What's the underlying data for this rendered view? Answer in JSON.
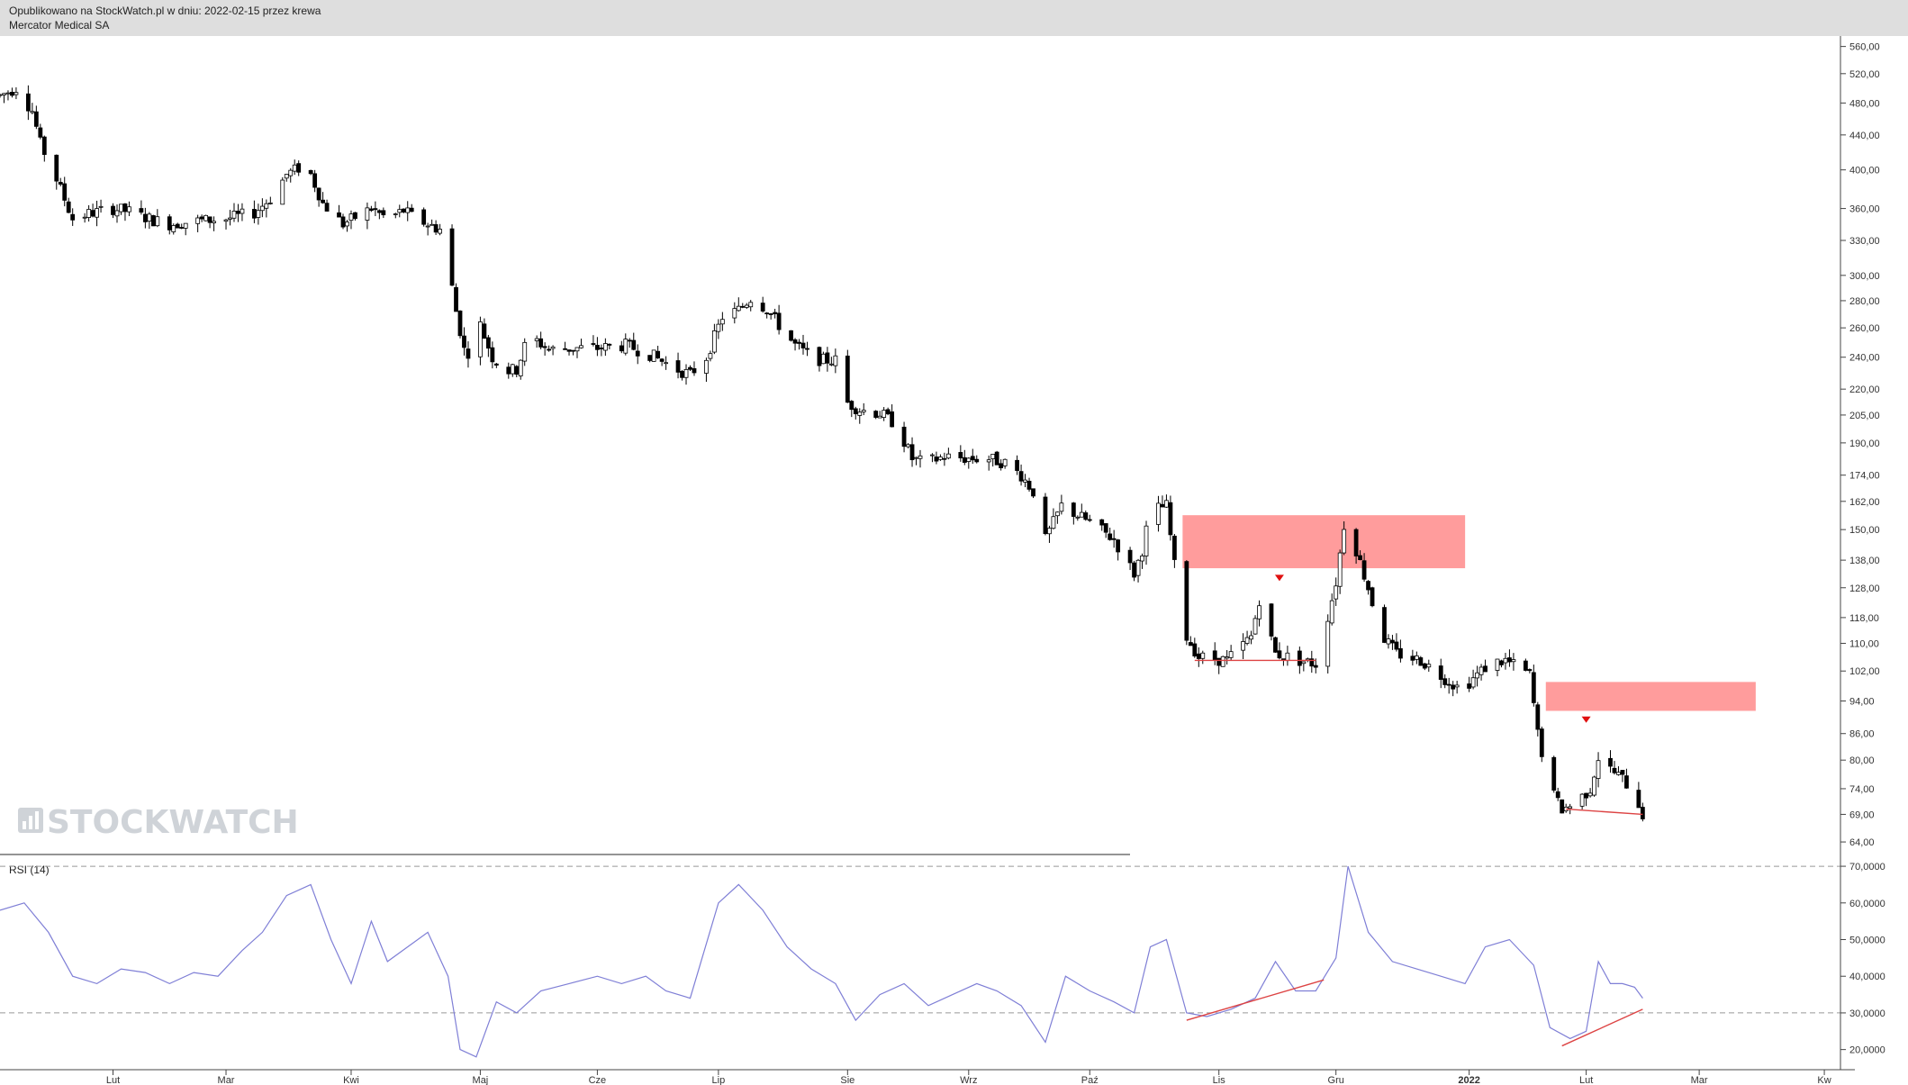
{
  "header": {
    "published": "Opublikowano na StockWatch.pl w dniu: 2022-02-15 przez krewa",
    "instrument": "Mercator Medical SA"
  },
  "watermark": "STOCKWATCH",
  "chart_data": [
    {
      "type": "candlestick",
      "title": "Mercator Medical SA",
      "y_scale": "log",
      "ylim": [
        62,
        565
      ],
      "y_ticks": [
        "560,00",
        "520,00",
        "480,00",
        "440,00",
        "400,00",
        "360,00",
        "330,00",
        "300,00",
        "280,00",
        "260,00",
        "240,00",
        "220,00",
        "205,00",
        "190,00",
        "174,00",
        "162,00",
        "150,00",
        "138,00",
        "128,00",
        "118,00",
        "110,00",
        "102,00",
        "94,00",
        "86,00",
        "80,00",
        "74,00",
        "69,00",
        "64,00"
      ],
      "x_range": [
        "2021-01-04",
        "2022-04-05"
      ],
      "x_ticks": [
        {
          "label": "Lut",
          "date": "2021-02-01"
        },
        {
          "label": "Mar",
          "date": "2021-03-01"
        },
        {
          "label": "Kwi",
          "date": "2021-04-01"
        },
        {
          "label": "Maj",
          "date": "2021-05-03"
        },
        {
          "label": "Cze",
          "date": "2021-06-01"
        },
        {
          "label": "Lip",
          "date": "2021-07-01"
        },
        {
          "label": "Sie",
          "date": "2021-08-02"
        },
        {
          "label": "Wrz",
          "date": "2021-09-01"
        },
        {
          "label": "Paź",
          "date": "2021-10-01"
        },
        {
          "label": "Lis",
          "date": "2021-11-02"
        },
        {
          "label": "Gru",
          "date": "2021-12-01"
        },
        {
          "label": "2022",
          "date": "2022-01-03",
          "bold": true
        },
        {
          "label": "Lut",
          "date": "2022-02-01"
        },
        {
          "label": "Mar",
          "date": "2022-03-01"
        },
        {
          "label": "Kw",
          "date": "2022-04-01"
        }
      ],
      "price_path": [
        [
          "2021-01-04",
          490
        ],
        [
          "2021-01-08",
          500
        ],
        [
          "2021-01-12",
          470
        ],
        [
          "2021-01-14",
          430
        ],
        [
          "2021-01-18",
          390
        ],
        [
          "2021-01-22",
          350
        ],
        [
          "2021-01-26",
          355
        ],
        [
          "2021-02-01",
          360
        ],
        [
          "2021-02-05",
          357
        ],
        [
          "2021-02-10",
          350
        ],
        [
          "2021-02-15",
          345
        ],
        [
          "2021-02-22",
          348
        ],
        [
          "2021-03-01",
          350
        ],
        [
          "2021-03-08",
          356
        ],
        [
          "2021-03-12",
          370
        ],
        [
          "2021-03-16",
          395
        ],
        [
          "2021-03-19",
          402
        ],
        [
          "2021-03-22",
          395
        ],
        [
          "2021-03-25",
          365
        ],
        [
          "2021-03-30",
          345
        ],
        [
          "2021-04-06",
          360
        ],
        [
          "2021-04-10",
          350
        ],
        [
          "2021-04-14",
          358
        ],
        [
          "2021-04-17",
          350
        ],
        [
          "2021-04-20",
          345
        ],
        [
          "2021-04-23",
          340
        ],
        [
          "2021-04-25",
          310
        ],
        [
          "2021-04-27",
          272
        ],
        [
          "2021-04-29",
          245
        ],
        [
          "2021-05-01",
          242
        ],
        [
          "2021-05-03",
          262
        ],
        [
          "2021-05-06",
          240
        ],
        [
          "2021-05-09",
          231
        ],
        [
          "2021-05-12",
          232
        ],
        [
          "2021-05-15",
          255
        ],
        [
          "2021-05-20",
          245
        ],
        [
          "2021-05-27",
          246
        ],
        [
          "2021-06-01",
          246
        ],
        [
          "2021-06-08",
          248
        ],
        [
          "2021-06-14",
          242
        ],
        [
          "2021-06-20",
          233
        ],
        [
          "2021-06-24",
          229
        ],
        [
          "2021-06-28",
          240
        ],
        [
          "2021-07-02",
          268
        ],
        [
          "2021-07-06",
          273
        ],
        [
          "2021-07-09",
          282
        ],
        [
          "2021-07-13",
          274
        ],
        [
          "2021-07-16",
          262
        ],
        [
          "2021-07-20",
          248
        ],
        [
          "2021-07-24",
          240
        ],
        [
          "2021-07-27",
          238
        ],
        [
          "2021-07-30",
          238
        ],
        [
          "2021-08-02",
          212
        ],
        [
          "2021-08-05",
          208
        ],
        [
          "2021-08-10",
          206
        ],
        [
          "2021-08-14",
          200
        ],
        [
          "2021-08-18",
          182
        ],
        [
          "2021-08-21",
          180
        ],
        [
          "2021-08-26",
          183
        ],
        [
          "2021-09-01",
          182
        ],
        [
          "2021-09-06",
          182
        ],
        [
          "2021-09-10",
          180
        ],
        [
          "2021-09-14",
          174
        ],
        [
          "2021-09-18",
          164
        ],
        [
          "2021-09-20",
          146
        ],
        [
          "2021-09-24",
          160
        ],
        [
          "2021-09-28",
          156
        ],
        [
          "2021-10-02",
          152
        ],
        [
          "2021-10-07",
          146
        ],
        [
          "2021-10-12",
          133
        ],
        [
          "2021-10-14",
          142
        ],
        [
          "2021-10-16",
          158
        ],
        [
          "2021-10-20",
          160
        ],
        [
          "2021-10-22",
          136
        ],
        [
          "2021-10-25",
          112
        ],
        [
          "2021-10-28",
          106
        ],
        [
          "2021-11-04",
          105
        ],
        [
          "2021-11-10",
          112
        ],
        [
          "2021-11-12",
          124
        ],
        [
          "2021-11-16",
          107
        ],
        [
          "2021-11-22",
          105
        ],
        [
          "2021-11-26",
          104
        ],
        [
          "2021-11-28",
          113
        ],
        [
          "2021-12-01",
          130
        ],
        [
          "2021-12-03",
          152
        ],
        [
          "2021-12-06",
          142
        ],
        [
          "2021-12-09",
          128
        ],
        [
          "2021-12-12",
          113
        ],
        [
          "2021-12-16",
          107
        ],
        [
          "2021-12-22",
          105
        ],
        [
          "2021-12-28",
          100
        ],
        [
          "2022-01-01",
          97
        ],
        [
          "2022-01-05",
          101
        ],
        [
          "2022-01-08",
          104
        ],
        [
          "2022-01-12",
          105
        ],
        [
          "2022-01-18",
          101
        ],
        [
          "2022-01-20",
          86
        ],
        [
          "2022-01-23",
          74
        ],
        [
          "2022-01-26",
          70
        ],
        [
          "2022-01-29",
          71
        ],
        [
          "2022-02-02",
          74
        ],
        [
          "2022-02-05",
          84
        ],
        [
          "2022-02-07",
          78
        ],
        [
          "2022-02-10",
          76
        ],
        [
          "2022-02-13",
          73
        ],
        [
          "2022-02-15",
          69
        ]
      ],
      "resistance_zones": [
        {
          "from": "2021-10-24",
          "to": "2022-01-02",
          "low": 135,
          "high": 156
        },
        {
          "from": "2022-01-22",
          "to": "2022-03-15",
          "low": 91.5,
          "high": 99
        }
      ],
      "marker_arrows": [
        {
          "date": "2021-11-17",
          "price": 131
        },
        {
          "date": "2022-02-01",
          "price": 89
        }
      ],
      "trend_lines": [
        {
          "from": [
            "2021-10-27",
            105
          ],
          "to": [
            "2021-11-26",
            105
          ]
        },
        {
          "from": [
            "2022-01-27",
            70
          ],
          "to": [
            "2022-02-15",
            69
          ]
        }
      ],
      "accent_colors": {
        "zone": "#ff9c9c",
        "marker": "#e01010",
        "line": "#dd4444"
      }
    },
    {
      "type": "line",
      "title": "RSI (14)",
      "ylim": [
        15,
        71
      ],
      "y_ticks": [
        "70,0000",
        "60,0000",
        "50,0000",
        "40,0000",
        "30,0000",
        "20,0000"
      ],
      "reference_lines": [
        70,
        30
      ],
      "series": [
        {
          "name": "RSI (14)",
          "color": "#7f7fd6",
          "points": [
            [
              "2021-01-04",
              58
            ],
            [
              "2021-01-10",
              60
            ],
            [
              "2021-01-16",
              52
            ],
            [
              "2021-01-22",
              40
            ],
            [
              "2021-01-28",
              38
            ],
            [
              "2021-02-03",
              42
            ],
            [
              "2021-02-09",
              41
            ],
            [
              "2021-02-15",
              38
            ],
            [
              "2021-02-21",
              41
            ],
            [
              "2021-02-27",
              40
            ],
            [
              "2021-03-05",
              47
            ],
            [
              "2021-03-10",
              52
            ],
            [
              "2021-03-16",
              62
            ],
            [
              "2021-03-22",
              65
            ],
            [
              "2021-03-27",
              50
            ],
            [
              "2021-04-01",
              38
            ],
            [
              "2021-04-06",
              55
            ],
            [
              "2021-04-10",
              44
            ],
            [
              "2021-04-15",
              48
            ],
            [
              "2021-04-20",
              52
            ],
            [
              "2021-04-25",
              40
            ],
            [
              "2021-04-28",
              20
            ],
            [
              "2021-05-02",
              18
            ],
            [
              "2021-05-07",
              33
            ],
            [
              "2021-05-12",
              30
            ],
            [
              "2021-05-18",
              36
            ],
            [
              "2021-05-25",
              38
            ],
            [
              "2021-06-01",
              40
            ],
            [
              "2021-06-07",
              38
            ],
            [
              "2021-06-13",
              40
            ],
            [
              "2021-06-18",
              36
            ],
            [
              "2021-06-24",
              34
            ],
            [
              "2021-07-01",
              60
            ],
            [
              "2021-07-06",
              65
            ],
            [
              "2021-07-12",
              58
            ],
            [
              "2021-07-18",
              48
            ],
            [
              "2021-07-24",
              42
            ],
            [
              "2021-07-30",
              38
            ],
            [
              "2021-08-04",
              28
            ],
            [
              "2021-08-10",
              35
            ],
            [
              "2021-08-16",
              38
            ],
            [
              "2021-08-22",
              32
            ],
            [
              "2021-08-28",
              35
            ],
            [
              "2021-09-03",
              38
            ],
            [
              "2021-09-08",
              36
            ],
            [
              "2021-09-14",
              32
            ],
            [
              "2021-09-20",
              22
            ],
            [
              "2021-09-25",
              40
            ],
            [
              "2021-10-01",
              36
            ],
            [
              "2021-10-07",
              33
            ],
            [
              "2021-10-12",
              30
            ],
            [
              "2021-10-16",
              48
            ],
            [
              "2021-10-20",
              50
            ],
            [
              "2021-10-25",
              30
            ],
            [
              "2021-10-30",
              29
            ],
            [
              "2021-11-05",
              31
            ],
            [
              "2021-11-11",
              34
            ],
            [
              "2021-11-16",
              44
            ],
            [
              "2021-11-21",
              36
            ],
            [
              "2021-11-26",
              36
            ],
            [
              "2021-12-01",
              45
            ],
            [
              "2021-12-04",
              70
            ],
            [
              "2021-12-09",
              52
            ],
            [
              "2021-12-15",
              44
            ],
            [
              "2021-12-21",
              42
            ],
            [
              "2021-12-27",
              40
            ],
            [
              "2022-01-02",
              38
            ],
            [
              "2022-01-07",
              48
            ],
            [
              "2022-01-13",
              50
            ],
            [
              "2022-01-19",
              43
            ],
            [
              "2022-01-23",
              26
            ],
            [
              "2022-01-28",
              23
            ],
            [
              "2022-02-01",
              25
            ],
            [
              "2022-02-04",
              44
            ],
            [
              "2022-02-07",
              38
            ],
            [
              "2022-02-10",
              38
            ],
            [
              "2022-02-13",
              37
            ],
            [
              "2022-02-15",
              34
            ]
          ]
        }
      ],
      "trend_lines": [
        {
          "from": [
            "2021-10-25",
            28
          ],
          "to": [
            "2021-11-28",
            39
          ]
        },
        {
          "from": [
            "2022-01-26",
            21
          ],
          "to": [
            "2022-02-15",
            31
          ]
        }
      ]
    }
  ]
}
